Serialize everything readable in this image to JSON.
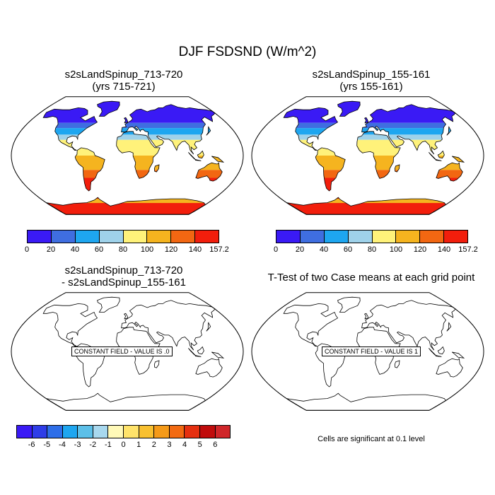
{
  "figure": {
    "title": "DJF FSDSND (W/m^2)"
  },
  "panels": [
    {
      "title_line1": "s2sLandSpinup_713-720",
      "title_line2": "(yrs 715-721)"
    },
    {
      "title_line1": "s2sLandSpinup_155-161",
      "title_line2": "(yrs 155-161)"
    },
    {
      "title_line1": "s2sLandSpinup_713-720",
      "title_line2": "- s2sLandSpinup_155-161",
      "constant_label": "CONSTANT FIELD - VALUE IS .0"
    },
    {
      "title_line1": "T-Test of two Case means at each grid point",
      "constant_label": "CONSTANT FIELD - VALUE IS 1"
    }
  ],
  "colorbar_main": {
    "labels": [
      "0",
      "20",
      "40",
      "60",
      "80",
      "100",
      "120",
      "140",
      "157.2"
    ],
    "colors": [
      "#3a1af5",
      "#3f6ee0",
      "#1ea6f0",
      "#9fd2ea",
      "#fff27a",
      "#f5b41f",
      "#f26712",
      "#f21e0c",
      "#d0262a"
    ]
  },
  "colorbar_diff": {
    "labels": [
      "-6",
      "-5",
      "-4",
      "-3",
      "-2",
      "-1",
      "0",
      "1",
      "2",
      "3",
      "4",
      "5",
      "6"
    ],
    "colors": [
      "#3a1af5",
      "#2e3de8",
      "#2e6ee8",
      "#1ea6f0",
      "#5cbfe8",
      "#a8d8ee",
      "#fff9b8",
      "#ffe36a",
      "#f8c030",
      "#f59a18",
      "#f26a12",
      "#e53010",
      "#c00c0c",
      "#d0262a"
    ]
  },
  "footnote": "Cells are significant at 0.1 level",
  "map_colors": {
    "land_outline": "#000000",
    "tundra": "#3a1af5",
    "boreal": "#3f6ee0",
    "midlat": "#1ea6f0",
    "lightblue": "#9fd2ea",
    "yellow": "#fff27a",
    "orange": "#f5b41f",
    "redorange": "#f26712",
    "red": "#f21e0c"
  }
}
